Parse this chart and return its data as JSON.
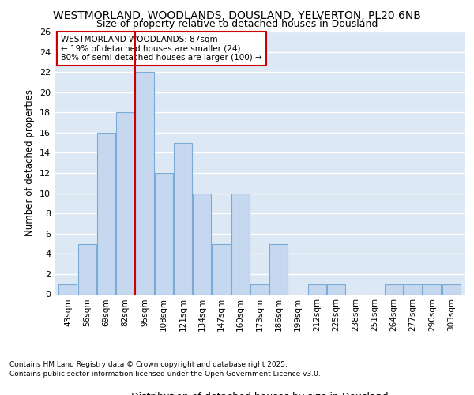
{
  "title_line1": "WESTMORLAND, WOODLANDS, DOUSLAND, YELVERTON, PL20 6NB",
  "title_line2": "Size of property relative to detached houses in Dousland",
  "xlabel": "Distribution of detached houses by size in Dousland",
  "ylabel": "Number of detached properties",
  "categories": [
    "43sqm",
    "56sqm",
    "69sqm",
    "82sqm",
    "95sqm",
    "108sqm",
    "121sqm",
    "134sqm",
    "147sqm",
    "160sqm",
    "173sqm",
    "186sqm",
    "199sqm",
    "212sqm",
    "225sqm",
    "238sqm",
    "251sqm",
    "264sqm",
    "277sqm",
    "290sqm",
    "303sqm"
  ],
  "values": [
    1,
    5,
    16,
    18,
    22,
    12,
    15,
    10,
    5,
    10,
    1,
    5,
    0,
    1,
    1,
    0,
    0,
    1,
    1,
    1,
    1
  ],
  "bar_color": "#c5d8f0",
  "bar_edge_color": "#7baad4",
  "background_color": "#dde8f5",
  "grid_color": "#ffffff",
  "vline_color": "#cc0000",
  "vline_pos": 3.5,
  "annotation_text": "WESTMORLAND WOODLANDS: 87sqm\n← 19% of detached houses are smaller (24)\n80% of semi-detached houses are larger (100) →",
  "annotation_box_color": "#ffffff",
  "annotation_box_edge": "#cc0000",
  "ylim": [
    0,
    26
  ],
  "yticks": [
    0,
    2,
    4,
    6,
    8,
    10,
    12,
    14,
    16,
    18,
    20,
    22,
    24,
    26
  ],
  "figure_bg": "#ffffff",
  "footnote_line1": "Contains HM Land Registry data © Crown copyright and database right 2025.",
  "footnote_line2": "Contains public sector information licensed under the Open Government Licence v3.0."
}
